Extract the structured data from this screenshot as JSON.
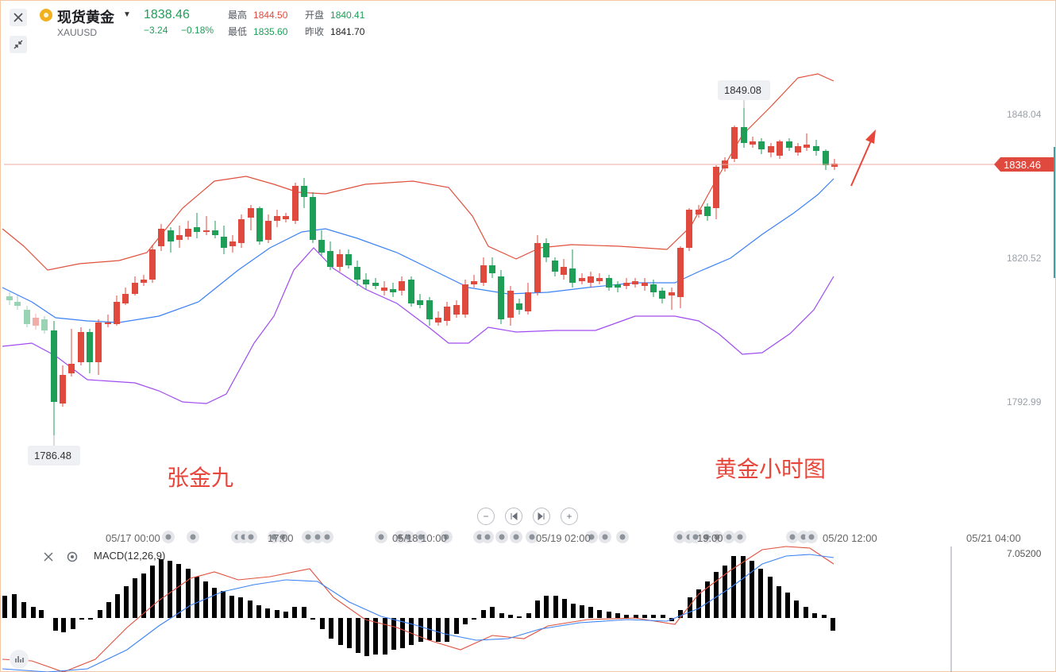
{
  "header": {
    "name": "现货黄金",
    "symbol": "XAUUSD",
    "price": "1838.46",
    "change": "−3.24",
    "change_pct": "−0.18%",
    "high_label": "最高",
    "high": "1844.50",
    "open_label": "开盘",
    "open": "1840.41",
    "low_label": "最低",
    "low": "1835.60",
    "prev_label": "昨收",
    "prev": "1841.70"
  },
  "price_axis": {
    "ticks": [
      "1848.04",
      "1820.52",
      "1792.99"
    ],
    "current": "1838.46"
  },
  "callouts": {
    "high": "1849.08",
    "low": "1786.48"
  },
  "annotations": {
    "left": "张金九",
    "right": "黄金小时图"
  },
  "time_axis": [
    "05/17 00:00",
    "17:00",
    "05/18 10:00",
    "05/19 02:00",
    "19:00",
    "05/20 12:00",
    "05/21 04:00"
  ],
  "macd": {
    "label": "MACD(12,26,9)",
    "value": "7.05200"
  },
  "colors": {
    "up": "#e04a3e",
    "down": "#1f9e58",
    "mid_band": "#3b82f6",
    "upper_band": "#e0503c",
    "lower_band": "#a04bf0"
  },
  "icons": [
    "close-icon",
    "collapse-icon",
    "chevron-down-icon",
    "zoom-out-icon",
    "step-back-icon",
    "step-forward-icon",
    "zoom-in-icon",
    "settings-icon"
  ]
}
